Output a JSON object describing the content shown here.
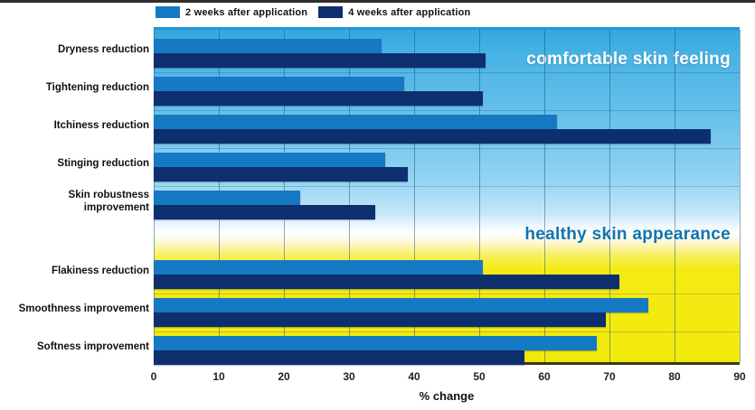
{
  "chart_data": {
    "type": "bar",
    "orientation": "horizontal",
    "title": "",
    "xlabel": "% change",
    "xlim": [
      0,
      90
    ],
    "ticks": [
      0,
      10,
      20,
      30,
      40,
      50,
      60,
      70,
      80,
      90
    ],
    "grid": true,
    "legend_position": "top",
    "series": [
      {
        "name": "2 weeks after application"
      },
      {
        "name": "4 weeks after application"
      }
    ],
    "colors": {
      "series": [
        "#1679c4",
        "#0d2f6e"
      ],
      "background_top": "#35a7dd",
      "background_bottom": "#f2e90c",
      "section_titles": [
        "#ffffff",
        "#0f74b2"
      ]
    },
    "sections": [
      {
        "title": "comfortable skin feeling",
        "categories": [
          "Dryness reduction",
          "Tightening reduction",
          "Itchiness reduction",
          "Stinging reduction",
          "Skin robustness improvement"
        ],
        "values_2_weeks": [
          35,
          38.5,
          62,
          35.5,
          22.5
        ],
        "values_4_weeks": [
          51,
          50.5,
          85.5,
          39,
          34
        ]
      },
      {
        "title": "healthy skin appearance",
        "categories": [
          "Flakiness reduction",
          "Smoothness improvement",
          "Softness improvement"
        ],
        "values_2_weeks": [
          50.5,
          76,
          68
        ],
        "values_4_weeks": [
          71.5,
          69.5,
          57
        ]
      }
    ]
  }
}
